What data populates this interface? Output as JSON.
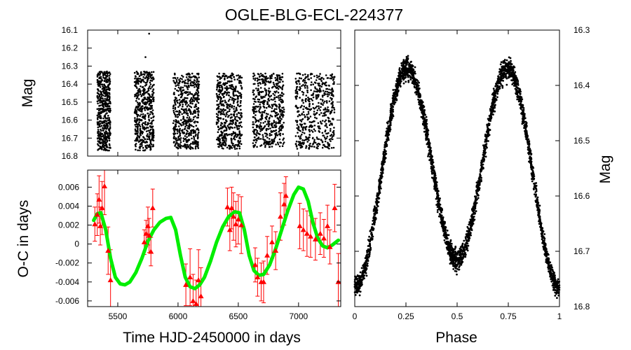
{
  "title": "OGLE-BLG-ECL-224377",
  "chart_data": [
    {
      "id": "lightcurve",
      "type": "scatter",
      "ylabel": "Mag",
      "xlim": [
        5250,
        7350
      ],
      "ylim": [
        16.8,
        16.1
      ],
      "y_inverted": true,
      "yticks": [
        "16.1",
        "16.2",
        "16.3",
        "16.4",
        "16.5",
        "16.6",
        "16.7",
        "16.8"
      ],
      "ytick_values": [
        16.1,
        16.2,
        16.3,
        16.4,
        16.5,
        16.6,
        16.7,
        16.8
      ],
      "seasons": [
        {
          "start": 5330,
          "end": 5440,
          "mag_min": 16.33,
          "mag_max": 16.77
        },
        {
          "start": 5640,
          "end": 5800,
          "mag_min": 16.33,
          "mag_max": 16.77
        },
        {
          "start": 5960,
          "end": 6175,
          "mag_min": 16.34,
          "mag_max": 16.76
        },
        {
          "start": 6320,
          "end": 6530,
          "mag_min": 16.34,
          "mag_max": 16.76
        },
        {
          "start": 6620,
          "end": 6880,
          "mag_min": 16.34,
          "mag_max": 16.75
        },
        {
          "start": 6975,
          "end": 7300,
          "mag_min": 16.34,
          "mag_max": 16.76
        }
      ],
      "outliers": [
        {
          "x": 5760,
          "y": 16.12
        },
        {
          "x": 5730,
          "y": 16.25
        }
      ]
    },
    {
      "id": "oc",
      "type": "scatter+line",
      "xlabel": "Time HJD-2450000 in days",
      "ylabel": "O-C in days",
      "xlim": [
        5250,
        7350
      ],
      "ylim": [
        -0.0066,
        0.0078
      ],
      "xticks": [
        "5500",
        "6000",
        "6500",
        "7000"
      ],
      "xtick_values": [
        5500,
        6000,
        6500,
        7000
      ],
      "yticks": [
        "0.006",
        "0.004",
        "0.002",
        "0",
        "-0.002",
        "-0.004",
        "-0.006"
      ],
      "ytick_values": [
        0.006,
        0.004,
        0.002,
        0,
        -0.002,
        -0.004,
        -0.006
      ],
      "points_color": "#ff0000",
      "fit_color": "#00ee00",
      "fit_curve": {
        "x": [
          5300,
          5330,
          5360,
          5400,
          5440,
          5480,
          5520,
          5560,
          5600,
          5650,
          5700,
          5750,
          5800,
          5850,
          5900,
          5940,
          5980,
          6020,
          6060,
          6100,
          6140,
          6180,
          6220,
          6270,
          6320,
          6370,
          6420,
          6470,
          6510,
          6550,
          6590,
          6630,
          6670,
          6710,
          6760,
          6810,
          6860,
          6910,
          6960,
          7000,
          7040,
          7080,
          7120,
          7160,
          7200,
          7240,
          7280,
          7330
        ],
        "y": [
          0.0025,
          0.0032,
          0.0033,
          0.0015,
          -0.0015,
          -0.0035,
          -0.0042,
          -0.0043,
          -0.004,
          -0.003,
          -0.0015,
          0.0003,
          0.0015,
          0.0023,
          0.0027,
          0.0028,
          0.0015,
          -0.0012,
          -0.0035,
          -0.0045,
          -0.0047,
          -0.0043,
          -0.0035,
          -0.0018,
          0.0002,
          0.0018,
          0.0029,
          0.0034,
          0.0033,
          0.0015,
          -0.0012,
          -0.0028,
          -0.0033,
          -0.0032,
          -0.0022,
          -0.0005,
          0.0015,
          0.0035,
          0.0052,
          0.006,
          0.0058,
          0.0045,
          0.0022,
          0.0006,
          -0.0002,
          -0.0004,
          -0.0001,
          0.0004
        ]
      },
      "points": [
        {
          "x": 5310,
          "y": 0.0021,
          "err": 0.0018
        },
        {
          "x": 5330,
          "y": 0.0031,
          "err": 0.0022
        },
        {
          "x": 5345,
          "y": 0.0047,
          "err": 0.0025
        },
        {
          "x": 5355,
          "y": 0.0019,
          "err": 0.002
        },
        {
          "x": 5370,
          "y": 0.0038,
          "err": 0.0028
        },
        {
          "x": 5390,
          "y": 0.0061,
          "err": 0.003
        },
        {
          "x": 5420,
          "y": -0.0007,
          "err": 0.0025
        },
        {
          "x": 5440,
          "y": -0.0038,
          "err": 0.0032
        },
        {
          "x": 5720,
          "y": 0.0002,
          "err": 0.0013
        },
        {
          "x": 5735,
          "y": 0.0011,
          "err": 0.0014
        },
        {
          "x": 5750,
          "y": 0.0019,
          "err": 0.002
        },
        {
          "x": 5760,
          "y": 0.0009,
          "err": 0.0018
        },
        {
          "x": 5775,
          "y": -0.0008,
          "err": 0.0015
        },
        {
          "x": 5790,
          "y": 0.0038,
          "err": 0.002
        },
        {
          "x": 6065,
          "y": -0.0043,
          "err": 0.0022
        },
        {
          "x": 6100,
          "y": -0.0035,
          "err": 0.003
        },
        {
          "x": 6125,
          "y": -0.006,
          "err": 0.0028
        },
        {
          "x": 6150,
          "y": -0.0063,
          "err": 0.0025
        },
        {
          "x": 6170,
          "y": -0.0038,
          "err": 0.0032
        },
        {
          "x": 6190,
          "y": -0.0055,
          "err": 0.003
        },
        {
          "x": 6410,
          "y": 0.0039,
          "err": 0.002
        },
        {
          "x": 6430,
          "y": 0.0015,
          "err": 0.0022
        },
        {
          "x": 6445,
          "y": 0.0038,
          "err": 0.0022
        },
        {
          "x": 6460,
          "y": 0.0029,
          "err": 0.0025
        },
        {
          "x": 6480,
          "y": 0.0021,
          "err": 0.0024
        },
        {
          "x": 6500,
          "y": 0.0026,
          "err": 0.0026
        },
        {
          "x": 6525,
          "y": 0.002,
          "err": 0.003
        },
        {
          "x": 6640,
          "y": -0.0022,
          "err": 0.0018
        },
        {
          "x": 6660,
          "y": -0.0035,
          "err": 0.002
        },
        {
          "x": 6690,
          "y": -0.004,
          "err": 0.002
        },
        {
          "x": 6710,
          "y": -0.004,
          "err": 0.0022
        },
        {
          "x": 6740,
          "y": -0.0012,
          "err": 0.002
        },
        {
          "x": 6780,
          "y": 0.0002,
          "err": 0.0017
        },
        {
          "x": 6810,
          "y": -0.0007,
          "err": 0.002
        },
        {
          "x": 6850,
          "y": 0.0029,
          "err": 0.0025
        },
        {
          "x": 6880,
          "y": 0.0042,
          "err": 0.0022
        },
        {
          "x": 6895,
          "y": 0.0051,
          "err": 0.002
        },
        {
          "x": 7010,
          "y": 0.0019,
          "err": 0.0024
        },
        {
          "x": 7040,
          "y": 0.0015,
          "err": 0.0022
        },
        {
          "x": 7070,
          "y": 0.0011,
          "err": 0.0024
        },
        {
          "x": 7100,
          "y": 0.0008,
          "err": 0.0022
        },
        {
          "x": 7140,
          "y": 0.0005,
          "err": 0.0022
        },
        {
          "x": 7180,
          "y": 0.0011,
          "err": 0.0022
        },
        {
          "x": 7210,
          "y": 0.0006,
          "err": 0.002
        },
        {
          "x": 7240,
          "y": 0.0019,
          "err": 0.0022
        },
        {
          "x": 7260,
          "y": -0.0003,
          "err": 0.0018
        },
        {
          "x": 7300,
          "y": 0.0038,
          "err": 0.0025
        },
        {
          "x": 7330,
          "y": -0.004,
          "err": 0.003
        }
      ]
    },
    {
      "id": "phased",
      "type": "scatter",
      "xlabel": "Phase",
      "ylabel": "Mag",
      "xlim": [
        0,
        1
      ],
      "ylim": [
        16.8,
        16.3
      ],
      "y_inverted": true,
      "xticks": [
        "0",
        "0.25",
        "0.5",
        "0.75",
        "1"
      ],
      "xtick_values": [
        0,
        0.25,
        0.5,
        0.75,
        1
      ],
      "yticks": [
        "16.3",
        "16.4",
        "16.5",
        "16.6",
        "16.7",
        "16.8"
      ],
      "ytick_values": [
        16.3,
        16.4,
        16.5,
        16.6,
        16.7,
        16.8
      ],
      "model": {
        "mean_mag": 16.555,
        "amp_2phi": 0.185,
        "amp_phi": 0.025,
        "scatter": 0.022
      }
    }
  ]
}
